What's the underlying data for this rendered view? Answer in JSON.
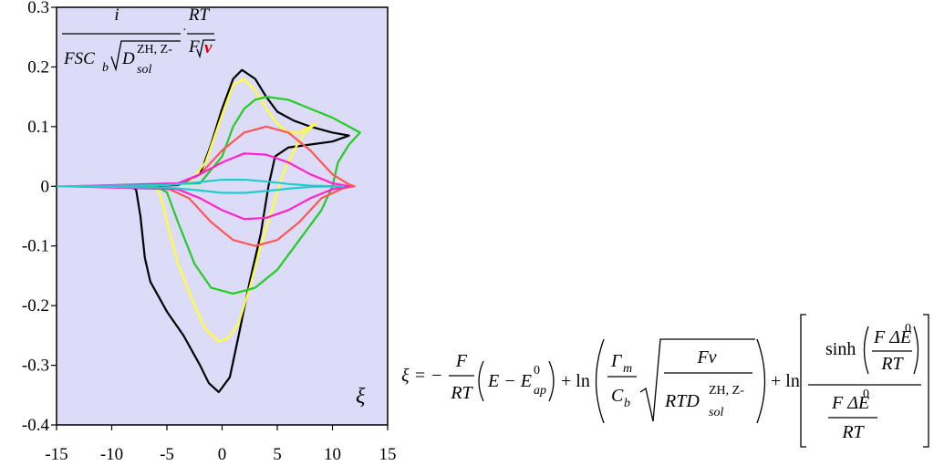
{
  "chart_data": {
    "type": "line",
    "x_label": "ξ",
    "y_label": {
      "numerator": "i",
      "den_main": "FSC",
      "den_sub": "b",
      "den_d": "D",
      "den_sup": "ZH, Z-",
      "den_sol": "sol",
      "factor_num": "RT",
      "factor_den": "F",
      "factor_v": "v"
    },
    "xlim": [
      -15,
      15
    ],
    "xticks": [
      -15,
      -10,
      -5,
      0,
      5,
      10,
      15
    ],
    "ylim": [
      -0.4,
      0.3
    ],
    "yticks": [
      -0.4,
      -0.3,
      -0.2,
      -0.1,
      0,
      0.1,
      0.2,
      0.3
    ],
    "background": "#dcdcf8",
    "series": [
      {
        "color": "#000000",
        "x": [
          -10,
          -4,
          -2,
          -1,
          0,
          1,
          1.8,
          3,
          4,
          5,
          6.5,
          8,
          10,
          11.5,
          10,
          8,
          6,
          4.8,
          4.2,
          3.5,
          2.5,
          1.5,
          0.7,
          -0.3,
          -1.2,
          -2,
          -3.5,
          -5,
          -6.5,
          -7,
          -7.4,
          -7.8,
          -8.5,
          -10
        ],
        "values": [
          0,
          0.002,
          0.02,
          0.07,
          0.13,
          0.18,
          0.195,
          0.18,
          0.15,
          0.125,
          0.11,
          0.1,
          0.09,
          0.085,
          0.075,
          0.07,
          0.065,
          0.05,
          0,
          -0.08,
          -0.16,
          -0.25,
          -0.32,
          -0.345,
          -0.33,
          -0.3,
          -0.25,
          -0.21,
          -0.16,
          -0.12,
          -0.05,
          -0.005,
          0,
          0
        ]
      },
      {
        "color": "#ffff33",
        "x": [
          -10,
          -3,
          -1.5,
          0,
          1,
          2,
          3,
          4,
          5,
          6,
          7,
          8,
          8.5,
          7.5,
          6.5,
          5.5,
          4.5,
          3.5,
          2.5,
          1.5,
          0.5,
          -0.3,
          -1.5,
          -2.5,
          -4,
          -5,
          -5.5,
          -6,
          -10
        ],
        "values": [
          0,
          0.005,
          0.04,
          0.12,
          0.17,
          0.18,
          0.16,
          0.13,
          0.105,
          0.09,
          0.09,
          0.1,
          0.105,
          0.09,
          0.06,
          0.02,
          -0.04,
          -0.1,
          -0.17,
          -0.23,
          -0.255,
          -0.26,
          -0.24,
          -0.2,
          -0.13,
          -0.06,
          -0.02,
          0,
          0
        ]
      },
      {
        "color": "#22cc22",
        "x": [
          -13,
          -2,
          0,
          1,
          2,
          3,
          4,
          6,
          8,
          10,
          11.5,
          12.5,
          11.5,
          10.5,
          10,
          9,
          7,
          5,
          3,
          1,
          -1,
          -2.5,
          -4,
          -5,
          -6,
          -13
        ],
        "values": [
          0,
          0.005,
          0.05,
          0.1,
          0.13,
          0.145,
          0.15,
          0.145,
          0.13,
          0.115,
          0.1,
          0.09,
          0.07,
          0.04,
          0,
          -0.04,
          -0.09,
          -0.14,
          -0.17,
          -0.18,
          -0.17,
          -0.13,
          -0.06,
          -0.01,
          0,
          0
        ]
      },
      {
        "color": "#ff5555",
        "x": [
          -14,
          -4,
          -2,
          0,
          2,
          4,
          6,
          8,
          10,
          11.5,
          12,
          11,
          9,
          7,
          5,
          3,
          1,
          -1,
          -3,
          -5,
          -14
        ],
        "values": [
          0,
          0.003,
          0.02,
          0.06,
          0.09,
          0.1,
          0.09,
          0.06,
          0.02,
          0.003,
          0,
          -0.003,
          -0.02,
          -0.06,
          -0.09,
          -0.1,
          -0.09,
          -0.06,
          -0.02,
          -0.003,
          0
        ]
      },
      {
        "color": "#ff22cc",
        "x": [
          -14,
          -4,
          -2,
          0,
          2,
          4,
          6,
          8,
          10,
          11.5,
          10,
          8,
          6,
          4,
          2,
          0,
          -2,
          -4,
          -14
        ],
        "values": [
          0,
          0.005,
          0.02,
          0.04,
          0.055,
          0.053,
          0.04,
          0.02,
          0.005,
          0,
          -0.005,
          -0.02,
          -0.04,
          -0.053,
          -0.055,
          -0.04,
          -0.02,
          -0.005,
          0
        ]
      },
      {
        "color": "#22cccc",
        "x": [
          -15,
          -5,
          -2,
          0,
          2,
          4,
          6,
          8,
          11,
          8,
          6,
          4,
          2,
          0,
          -2,
          -5,
          -15
        ],
        "values": [
          0,
          0.002,
          0.007,
          0.011,
          0.011,
          0.008,
          0.004,
          0.001,
          0,
          -0.001,
          -0.004,
          -0.008,
          -0.011,
          -0.011,
          -0.007,
          -0.002,
          0
        ]
      }
    ],
    "equation": [
      "ξ = −",
      "F",
      "RT",
      "E − E",
      "0",
      "ap",
      "+ ln",
      "Γ",
      "m",
      "C",
      "b",
      "Fv",
      "RTD",
      "ZH, Z-",
      "sol",
      "+ ln",
      "sinh",
      "F ΔE",
      "0",
      "RT",
      "F ΔE",
      "0",
      "RT"
    ]
  }
}
